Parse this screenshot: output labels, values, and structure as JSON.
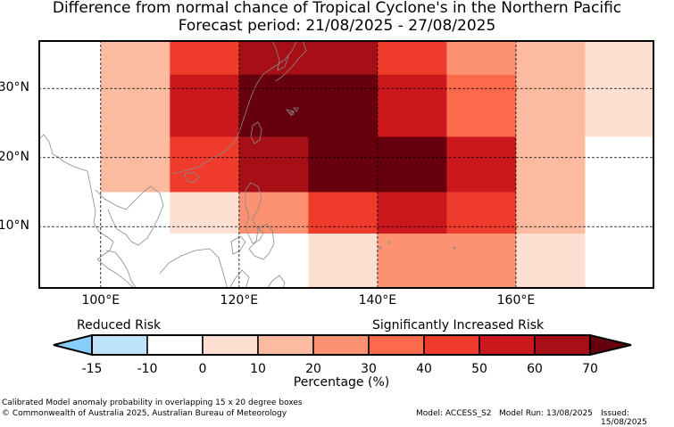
{
  "title": {
    "line1": "Difference from normal chance of Tropical Cyclone's in the Northern Pacific",
    "line2": "Forecast period: 21/08/2025 - 27/08/2025"
  },
  "axes": {
    "lat_labels": [
      "30°N",
      "20°N",
      "10°N"
    ],
    "lat_values": [
      30,
      20,
      10
    ],
    "lon_labels": [
      "100°E",
      "120°E",
      "140°E",
      "160°E"
    ],
    "lon_values": [
      100,
      120,
      140,
      160
    ],
    "lon_range": [
      91,
      180
    ],
    "lat_range": [
      1,
      37
    ]
  },
  "grid": {
    "lon_edges": [
      91,
      100,
      110,
      120,
      130,
      140,
      150,
      160,
      170,
      180
    ],
    "lat_bands": [
      {
        "lat_top": 37,
        "lat_bottom": 32,
        "values": [
          null,
          15,
          45,
          60,
          60,
          45,
          25,
          15,
          5
        ]
      },
      {
        "lat_top": 32,
        "lat_bottom": 23,
        "values": [
          null,
          15,
          55,
          70,
          70,
          55,
          35,
          15,
          5
        ]
      },
      {
        "lat_top": 23,
        "lat_bottom": 15,
        "values": [
          null,
          15,
          45,
          60,
          70,
          70,
          55,
          15,
          null
        ]
      },
      {
        "lat_top": 15,
        "lat_bottom": 9,
        "values": [
          -5,
          null,
          5,
          25,
          45,
          55,
          45,
          15,
          -5
        ]
      },
      {
        "lat_top": 9,
        "lat_bottom": 1,
        "values": [
          -10,
          -10,
          -10,
          -10,
          5,
          25,
          25,
          5,
          -5
        ]
      }
    ]
  },
  "colorbar": {
    "bounds": [
      -15,
      -10,
      0,
      10,
      20,
      30,
      40,
      50,
      60,
      70
    ],
    "tick_labels": [
      "-15",
      "-10",
      "0",
      "10",
      "20",
      "30",
      "40",
      "50",
      "60",
      "70"
    ],
    "colors": [
      "#bee3fb",
      "#ffffff",
      "#fee0d2",
      "#fcbba1",
      "#fc9272",
      "#fb6a4a",
      "#ef3b2c",
      "#cb181d",
      "#a50f15"
    ],
    "under_color": "#87cefa",
    "over_color": "#67000d",
    "label": "Percentage (%)",
    "low_text": "Reduced Risk",
    "high_text": "Significantly Increased Risk"
  },
  "footer": {
    "note": "Calibrated Model anomaly probability in overlapping 15 x 20 degree boxes",
    "copyright": "© Commonwealth of Australia 2025, Australian Bureau of Meteorology",
    "model": "Model: ACCESS_S2",
    "model_run": "Model Run: 13/08/2025",
    "issued": "Issued: 15/08/2025"
  }
}
